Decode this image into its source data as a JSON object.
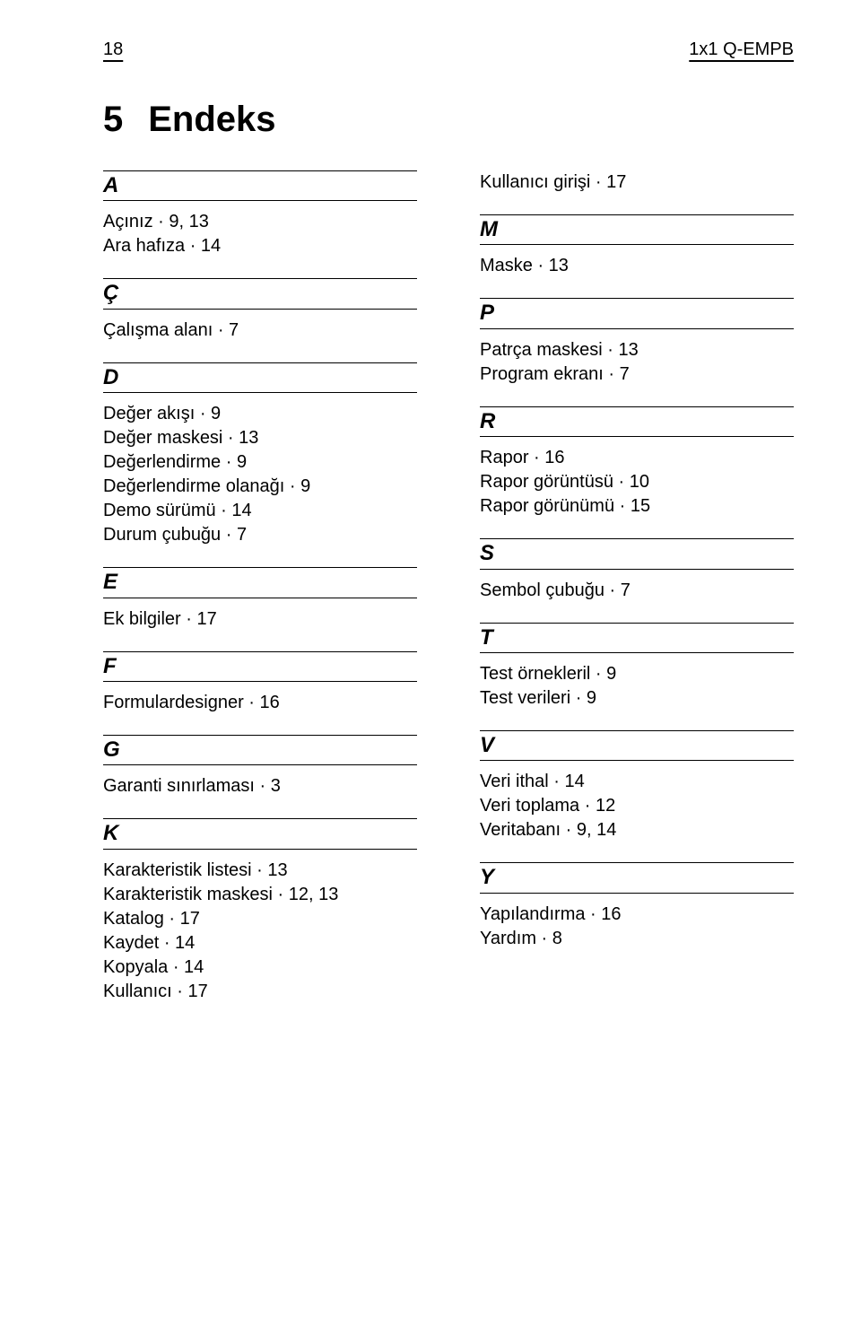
{
  "header": {
    "page_number": "18",
    "doc_title": "1x1 Q-EMPB"
  },
  "title": {
    "number": "5",
    "text": "Endeks"
  },
  "dot_separator": " · ",
  "columns": {
    "left": [
      {
        "letter": "A",
        "entries": [
          {
            "t": "Açınız",
            "p": "9, 13"
          },
          {
            "t": "Ara hafıza",
            "p": "14"
          }
        ]
      },
      {
        "letter": "Ç",
        "entries": [
          {
            "t": "Çalışma alanı",
            "p": "7"
          }
        ]
      },
      {
        "letter": "D",
        "entries": [
          {
            "t": "Değer akışı",
            "p": "9"
          },
          {
            "t": "Değer maskesi",
            "p": "13"
          },
          {
            "t": "Değerlendirme",
            "p": "9"
          },
          {
            "t": "Değerlendirme olanağı",
            "p": "9"
          },
          {
            "t": "Demo sürümü",
            "p": "14"
          },
          {
            "t": "Durum çubuğu",
            "p": "7"
          }
        ]
      },
      {
        "letter": "E",
        "entries": [
          {
            "t": "Ek bilgiler",
            "p": "17"
          }
        ]
      },
      {
        "letter": "F",
        "entries": [
          {
            "t": "Formulardesigner",
            "p": "16"
          }
        ]
      },
      {
        "letter": "G",
        "entries": [
          {
            "t": "Garanti sınırlaması",
            "p": "3"
          }
        ]
      },
      {
        "letter": "K",
        "entries": [
          {
            "t": "Karakteristik listesi",
            "p": "13"
          },
          {
            "t": "Karakteristik maskesi",
            "p": "12, 13"
          },
          {
            "t": "Katalog",
            "p": "17"
          },
          {
            "t": "Kaydet",
            "p": "14"
          },
          {
            "t": "Kopyala",
            "p": "14"
          },
          {
            "t": "Kullanıcı",
            "p": "17"
          }
        ]
      }
    ],
    "right_leading": [
      {
        "t": "Kullanıcı girişi",
        "p": "17"
      }
    ],
    "right": [
      {
        "letter": "M",
        "entries": [
          {
            "t": "Maske",
            "p": "13"
          }
        ]
      },
      {
        "letter": "P",
        "entries": [
          {
            "t": "Patrça maskesi",
            "p": "13"
          },
          {
            "t": "Program ekranı",
            "p": "7"
          }
        ]
      },
      {
        "letter": "R",
        "entries": [
          {
            "t": "Rapor",
            "p": "16"
          },
          {
            "t": "Rapor görüntüsü",
            "p": "10"
          },
          {
            "t": "Rapor görünümü",
            "p": "15"
          }
        ]
      },
      {
        "letter": "S",
        "entries": [
          {
            "t": "Sembol çubuğu",
            "p": "7"
          }
        ]
      },
      {
        "letter": "T",
        "entries": [
          {
            "t": "Test örnekleril",
            "p": "9"
          },
          {
            "t": "Test verileri",
            "p": "9"
          }
        ]
      },
      {
        "letter": "V",
        "entries": [
          {
            "t": "Veri ithal",
            "p": "14"
          },
          {
            "t": "Veri toplama",
            "p": "12"
          },
          {
            "t": "Veritabanı",
            "p": "9, 14"
          }
        ]
      },
      {
        "letter": "Y",
        "entries": [
          {
            "t": "Yapılandırma",
            "p": "16"
          },
          {
            "t": "Yardım",
            "p": "8"
          }
        ]
      }
    ]
  }
}
